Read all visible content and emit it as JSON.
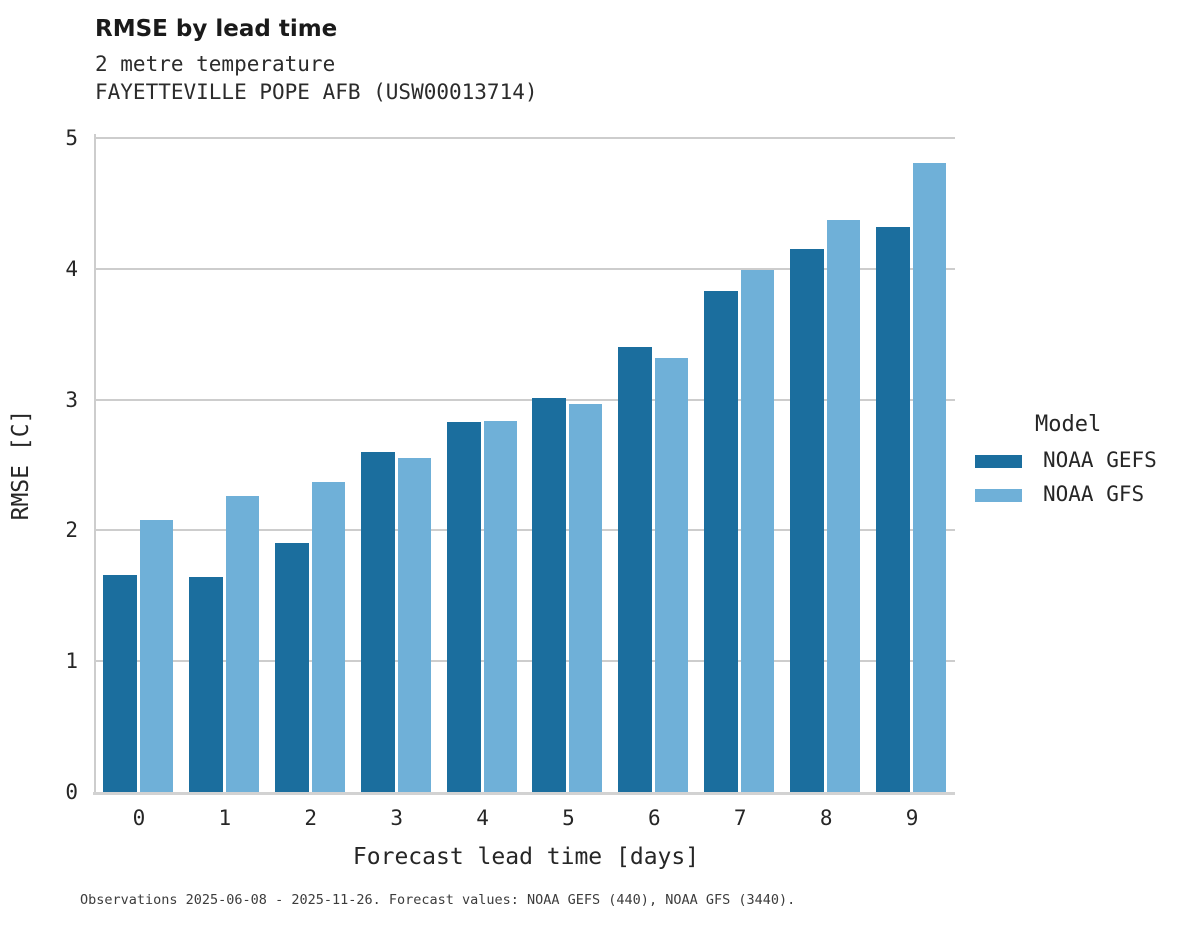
{
  "header": {
    "title": "RMSE by lead time",
    "subtitle": "2 metre temperature",
    "station": "FAYETTEVILLE POPE AFB (USW00013714)"
  },
  "caption": "Observations 2025-06-08 - 2025-11-26. Forecast values: NOAA GEFS (440), NOAA GFS (3440).",
  "legend": {
    "title": "Model",
    "entries": [
      {
        "label": "NOAA GEFS",
        "color": "#1b6e9e"
      },
      {
        "label": "NOAA GFS",
        "color": "#6fb0d8"
      }
    ]
  },
  "axes": {
    "x_label": "Forecast lead time [days]",
    "y_label": "RMSE [C]"
  },
  "colors": {
    "gefs_bar": "#1b6e9e",
    "gfs_bar": "#6fb0d8",
    "gridline": "#cdcdcd",
    "axis_line": "#d2d2d2",
    "title_text": "#1a1a1a",
    "label_text": "#262626"
  },
  "chart_data": {
    "type": "bar",
    "title": "RMSE by lead time",
    "subtitle": "2 metre temperature",
    "station": "FAYETTEVILLE POPE AFB (USW00013714)",
    "xlabel": "Forecast lead time [days]",
    "ylabel": "RMSE [C]",
    "categories": [
      "0",
      "1",
      "2",
      "3",
      "4",
      "5",
      "6",
      "7",
      "8",
      "9"
    ],
    "series": [
      {
        "name": "NOAA GEFS",
        "color": "#1b6e9e",
        "values": [
          1.66,
          1.64,
          1.9,
          2.6,
          2.83,
          3.01,
          3.4,
          3.83,
          4.15,
          4.32
        ]
      },
      {
        "name": "NOAA GFS",
        "color": "#6fb0d8",
        "values": [
          2.08,
          2.26,
          2.37,
          2.55,
          2.84,
          2.97,
          3.32,
          3.99,
          4.37,
          4.81
        ]
      }
    ],
    "ylim": [
      0,
      5
    ],
    "yticks": [
      "0",
      "1",
      "2",
      "3",
      "4",
      "5"
    ],
    "grid": true,
    "legend_title": "Model",
    "legend_position": "right"
  }
}
